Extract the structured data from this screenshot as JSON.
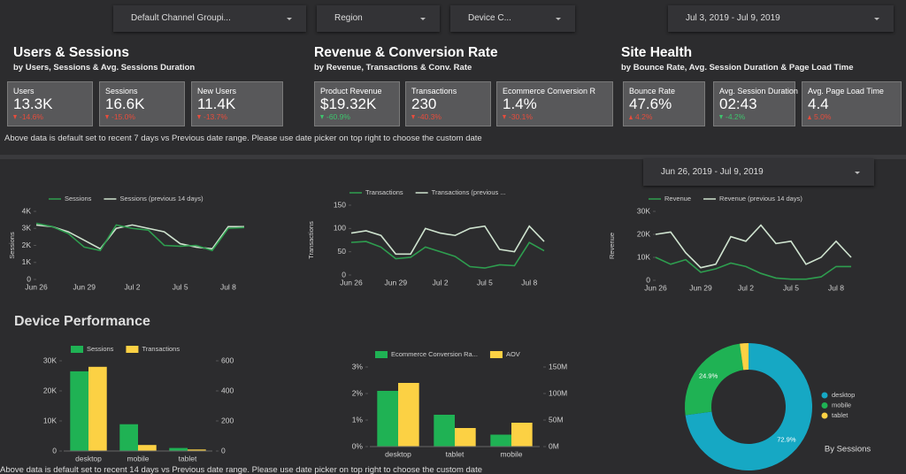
{
  "filters": [
    "Default Channel Groupi...",
    "Region",
    "Device C..."
  ],
  "date_range": "Jul 3, 2019 - Jul 9, 2019",
  "sections": [
    {
      "title": "Users & Sessions",
      "subtitle": "by Users, Sessions & Avg. Sessions Duration",
      "cards": [
        {
          "label": "Users",
          "value": "13.3K",
          "delta": "-14.6%",
          "trend": "down",
          "delta_color": "#e74c3c"
        },
        {
          "label": "Sessions",
          "value": "16.6K",
          "delta": "-15.0%",
          "trend": "down",
          "delta_color": "#e74c3c"
        },
        {
          "label": "New Users",
          "value": "11.4K",
          "delta": "-13.7%",
          "trend": "down",
          "delta_color": "#e74c3c"
        }
      ]
    },
    {
      "title": "Revenue & Conversion Rate",
      "subtitle": "by Revenue, Transactions & Conv. Rate",
      "cards": [
        {
          "label": "Product Revenue",
          "value": "$19.32K",
          "delta": "-60.9%",
          "trend": "down",
          "delta_color": "#3ec46d"
        },
        {
          "label": "Transactions",
          "value": "230",
          "delta": "-40.3%",
          "trend": "down",
          "delta_color": "#e74c3c"
        },
        {
          "label": "Ecommerce Conversion R",
          "value": "1.4%",
          "delta": "-30.1%",
          "trend": "down",
          "delta_color": "#e74c3c"
        }
      ]
    },
    {
      "title": "Site Health",
      "subtitle": "by Bounce Rate, Avg. Session Duration & Page Load Time",
      "cards": [
        {
          "label": "Bounce Rate",
          "value": "47.6%",
          "delta": "4.2%",
          "trend": "up",
          "delta_color": "#e74c3c"
        },
        {
          "label": "Avg. Session Duration",
          "value": "02:43",
          "delta": "-4.2%",
          "trend": "down",
          "delta_color": "#3ec46d"
        },
        {
          "label": "Avg. Page Load Time",
          "value": "4.4",
          "delta": "5.0%",
          "trend": "up",
          "delta_color": "#e74c3c"
        }
      ]
    }
  ],
  "note": "Above data is default set to recent 7 days vs Previous date range. Please use date picker on top right to choose the custom date",
  "chart_date_range": "Jun 26, 2019 - Jul 9, 2019",
  "device_title": "Device Performance",
  "chart_data": [
    {
      "type": "line",
      "ylabel": "Sessions",
      "categories": [
        "Jun 26",
        null,
        null,
        "Jun 29",
        null,
        null,
        "Jul 2",
        null,
        null,
        "Jul 5",
        null,
        null,
        "Jul 8",
        null
      ],
      "series": [
        {
          "name": "Sessions",
          "color": "#2e9e4f",
          "values": [
            3300,
            3100,
            2700,
            1900,
            1700,
            3200,
            3000,
            2900,
            2000,
            1950,
            2000,
            1700,
            3000,
            3050
          ]
        },
        {
          "name": "Sessions (previous 14 days)",
          "color": "#cfe3cf",
          "values": [
            3200,
            3100,
            2800,
            2300,
            1800,
            3000,
            3200,
            3000,
            2800,
            2100,
            1900,
            1800,
            3100,
            3100
          ]
        }
      ],
      "ylim": [
        0,
        4000
      ],
      "yticks": [
        0,
        {
          "value": 1000,
          "label": "1K"
        },
        {
          "value": 2000,
          "label": "2K"
        },
        {
          "value": 3000,
          "label": "3K"
        },
        {
          "value": 4000,
          "label": "4K"
        }
      ]
    },
    {
      "type": "line",
      "ylabel": "Transactions",
      "categories": [
        "Jun 26",
        null,
        null,
        "Jun 29",
        null,
        null,
        "Jul 2",
        null,
        null,
        "Jul 5",
        null,
        null,
        "Jul 8",
        null
      ],
      "series": [
        {
          "name": "Transactions",
          "color": "#2e9e4f",
          "values": [
            70,
            72,
            60,
            35,
            38,
            60,
            50,
            40,
            18,
            15,
            22,
            20,
            70,
            52
          ]
        },
        {
          "name": "Transactions (previous ...",
          "color": "#cfe3cf",
          "values": [
            90,
            95,
            85,
            45,
            45,
            100,
            90,
            85,
            100,
            105,
            55,
            50,
            105,
            72
          ]
        }
      ],
      "ylim": [
        0,
        150
      ],
      "yticks": [
        0,
        50,
        100,
        150
      ]
    },
    {
      "type": "line",
      "ylabel": "Revenue",
      "categories": [
        "Jun 26",
        null,
        null,
        "Jun 29",
        null,
        null,
        "Jul 2",
        null,
        null,
        "Jul 5",
        null,
        null,
        "Jul 8",
        null
      ],
      "series": [
        {
          "name": "Revenue",
          "color": "#2e9e4f",
          "values": [
            10000,
            7000,
            9000,
            3500,
            5000,
            7500,
            6000,
            3000,
            1000,
            500,
            500,
            1500,
            6000,
            6000
          ]
        },
        {
          "name": "Revenue (previous 14 days)",
          "color": "#cfe3cf",
          "values": [
            20000,
            21000,
            12000,
            5500,
            7000,
            19000,
            17000,
            24000,
            16000,
            17000,
            7000,
            10000,
            17000,
            10000
          ]
        }
      ],
      "ylim": [
        0,
        30000
      ],
      "yticks": [
        0,
        {
          "value": 10000,
          "label": "10K"
        },
        {
          "value": 20000,
          "label": "20K"
        },
        {
          "value": 30000,
          "label": "30K"
        }
      ]
    },
    {
      "type": "bar",
      "categories": [
        "desktop",
        "mobile",
        "tablet"
      ],
      "series": [
        {
          "name": "Sessions",
          "color": "#1fb254",
          "values": [
            26500,
            8900,
            1000
          ]
        },
        {
          "name": "Transactions",
          "color": "#fcd144",
          "axis": "y2",
          "values": [
            560,
            40,
            10
          ]
        }
      ],
      "ylim": [
        0,
        30000
      ],
      "yticks": [
        0,
        {
          "value": 10000,
          "label": "10K"
        },
        {
          "value": 20000,
          "label": "20K"
        },
        {
          "value": 30000,
          "label": "30K"
        }
      ],
      "y2lim": [
        0,
        600
      ],
      "y2ticks": [
        0,
        200,
        400,
        600
      ]
    },
    {
      "type": "bar",
      "categories": [
        "desktop",
        "tablet",
        "mobile"
      ],
      "series": [
        {
          "name": "Ecommerce Conversion Ra...",
          "color": "#1fb254",
          "values": [
            2.1,
            1.2,
            0.45
          ]
        },
        {
          "name": "AOV",
          "color": "#fcd144",
          "axis": "y2",
          "values": [
            120000000,
            35000000,
            45000000
          ]
        }
      ],
      "ylim": [
        0,
        3
      ],
      "yticks": [
        {
          "value": 0,
          "label": "0%"
        },
        {
          "value": 1,
          "label": "1%"
        },
        {
          "value": 2,
          "label": "2%"
        },
        {
          "value": 3,
          "label": "3%"
        }
      ],
      "y2lim": [
        0,
        150000000
      ],
      "y2ticks": [
        {
          "value": 0,
          "label": "0M"
        },
        {
          "value": 50000000,
          "label": "50M"
        },
        {
          "value": 100000000,
          "label": "100M"
        },
        {
          "value": 150000000,
          "label": "150M"
        }
      ]
    },
    {
      "type": "pie",
      "title": "By Sessions",
      "categories": [
        "desktop",
        "mobile",
        "tablet"
      ],
      "values": [
        72.9,
        24.9,
        2.2
      ],
      "value_labels": [
        "72.9%",
        "24.9%",
        null
      ],
      "colors": [
        "#16a8c4",
        "#1fb254",
        "#fcd144"
      ]
    }
  ],
  "footer_note": "Above data is default set to recent 14 days vs Previous date range. Please use date picker on top right to choose the custom date"
}
